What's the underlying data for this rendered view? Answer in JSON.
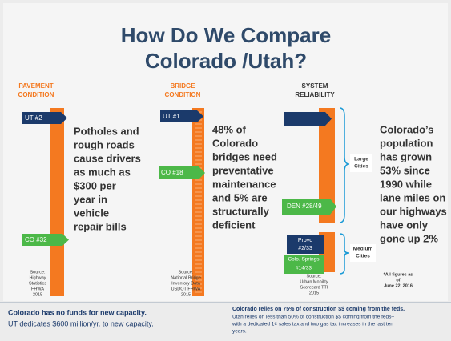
{
  "title": [
    "How Do We Compare",
    "Colorado /Utah?"
  ],
  "pavement": {
    "heading": [
      "PAVEMENT",
      "CONDITION"
    ],
    "markers": [
      "UT #2",
      "CO #32"
    ],
    "text": [
      "Potholes and",
      "rough roads",
      "cause drivers",
      "as much as",
      "$300 per",
      "year in",
      "vehicle",
      "repair bills"
    ],
    "source": [
      "Source:",
      "Highway",
      "Statistics",
      "FHWA",
      "2015"
    ]
  },
  "bridge": {
    "heading": [
      "BRIDGE",
      "CONDITION"
    ],
    "markers": [
      "UT #1",
      "CO #18"
    ],
    "text": [
      "48% of",
      "Colorado",
      "bridges need",
      "preventative",
      "maintenance",
      "and 5% are",
      "structurally",
      "deficient"
    ],
    "source": [
      "Source:",
      "National Bridge",
      "Inventory Data",
      "USDOT FHWA",
      "2015"
    ]
  },
  "reliability": {
    "heading": [
      "SYSTEM",
      "RELIABILITY"
    ],
    "markers": [
      "DEN #28/49",
      "Provo",
      "#2/33",
      "Colo. Springs",
      "#14/33"
    ],
    "groups": [
      [
        "Large",
        "Cities"
      ],
      [
        "Medium",
        "Cities"
      ]
    ],
    "text": [
      "Colorado’s",
      "population",
      "has grown",
      "53% since",
      "1990 while",
      "lane miles on",
      "our highways",
      "have only",
      "gone up 2%"
    ],
    "source": [
      "Source:",
      "Urban Mobility",
      "Scorecard TTI",
      "2015"
    ],
    "note": [
      "*All figures as",
      "of",
      "June 22, 2016"
    ]
  },
  "footer": {
    "left": [
      "Colorado has no funds for new capacity.",
      "UT dedicates $600 million/yr. to new capacity."
    ],
    "right": [
      "Colorado relies on 75% of construction $$ coming from the feds.",
      "Utah relies on less than 50% of construction $$ coming from the feds–",
      "with a dedicated 1¢ sales tax and two gas tax increases in the last ten",
      "years."
    ]
  }
}
